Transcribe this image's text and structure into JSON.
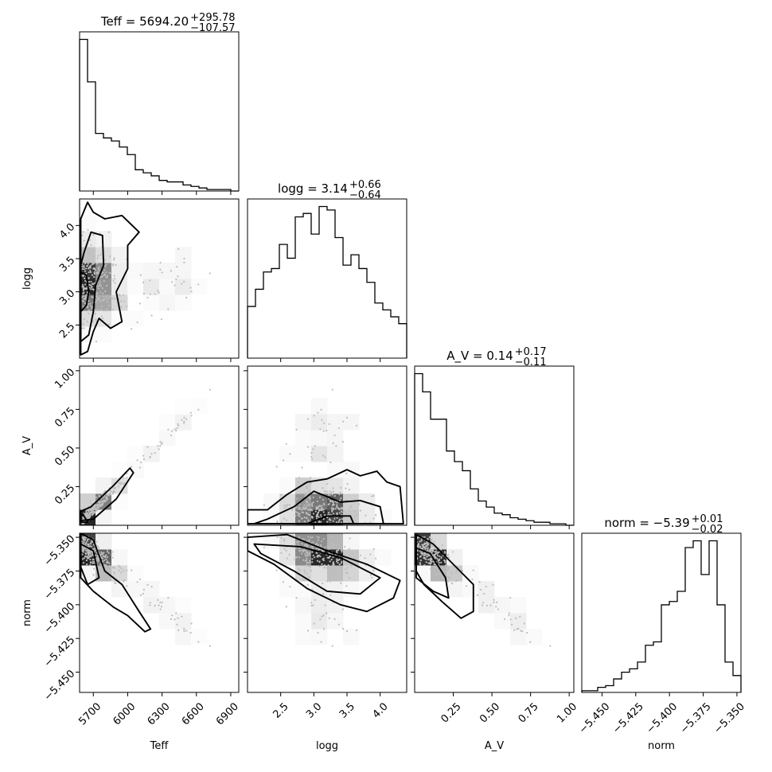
{
  "chart_data": {
    "type": "corner",
    "parameters": [
      "Teff",
      "logg",
      "A_V",
      "norm"
    ],
    "titles": [
      {
        "param": "Teff",
        "median": "5694.20",
        "plus": "+295.78",
        "minus": "−107.57"
      },
      {
        "param": "logg",
        "median": "3.14",
        "plus": "+0.66",
        "minus": "−0.64"
      },
      {
        "param": "A_V",
        "median": "0.14",
        "plus": "+0.17",
        "minus": "−0.11"
      },
      {
        "param": "norm",
        "median": "−5.39",
        "plus": "+0.01",
        "minus": "−0.02"
      }
    ],
    "axis_labels": [
      "Teff",
      "logg",
      "A_V",
      "norm"
    ],
    "ranges": {
      "Teff": [
        5580,
        6970
      ],
      "logg": [
        2.0,
        4.4
      ],
      "A_V": [
        0.0,
        1.03
      ],
      "norm": [
        -5.465,
        -5.347
      ]
    },
    "ticks": {
      "Teff": {
        "values": [
          5700,
          6000,
          6300,
          6600,
          6900
        ],
        "labels": [
          "5700",
          "6000",
          "6300",
          "6600",
          "6900"
        ]
      },
      "logg": {
        "values": [
          2.5,
          3.0,
          3.5,
          4.0
        ],
        "labels": [
          "2.5",
          "3.0",
          "3.5",
          "4.0"
        ]
      },
      "A_V": {
        "values": [
          0.25,
          0.5,
          0.75,
          1.0
        ],
        "labels": [
          "0.25",
          "0.50",
          "0.75",
          "1.00"
        ]
      },
      "norm": {
        "values": [
          -5.45,
          -5.425,
          -5.4,
          -5.375,
          -5.35
        ],
        "labels": [
          "−5.450",
          "−5.425",
          "−5.400",
          "−5.375",
          "−5.350"
        ]
      }
    },
    "histograms": {
      "Teff": {
        "range": [
          5580,
          6970
        ],
        "counts": [
          100,
          72,
          38,
          35,
          33,
          29,
          24,
          14,
          12,
          10,
          7,
          6,
          6,
          4,
          3,
          2,
          1,
          1,
          1,
          0
        ]
      },
      "logg": {
        "range": [
          2.0,
          4.4
        ],
        "counts": [
          30,
          40,
          50,
          52,
          66,
          58,
          82,
          84,
          72,
          88,
          86,
          70,
          54,
          60,
          52,
          44,
          32,
          28,
          24,
          20
        ]
      },
      "A_V": {
        "range": [
          0.0,
          1.03
        ],
        "counts": [
          100,
          88,
          70,
          70,
          49,
          42,
          36,
          24,
          16,
          12,
          8,
          7,
          5,
          4,
          3,
          2,
          2,
          1,
          1,
          0
        ]
      },
      "norm": {
        "range": [
          -5.465,
          -5.347
        ],
        "counts": [
          1,
          1,
          3,
          4,
          8,
          12,
          14,
          18,
          28,
          30,
          52,
          54,
          60,
          86,
          90,
          70,
          90,
          52,
          18,
          10
        ]
      }
    },
    "pairs": [
      {
        "x": "Teff",
        "y": "logg"
      },
      {
        "x": "Teff",
        "y": "A_V"
      },
      {
        "x": "logg",
        "y": "A_V"
      },
      {
        "x": "Teff",
        "y": "norm"
      },
      {
        "x": "logg",
        "y": "norm"
      },
      {
        "x": "A_V",
        "y": "norm"
      }
    ],
    "grid": false
  }
}
